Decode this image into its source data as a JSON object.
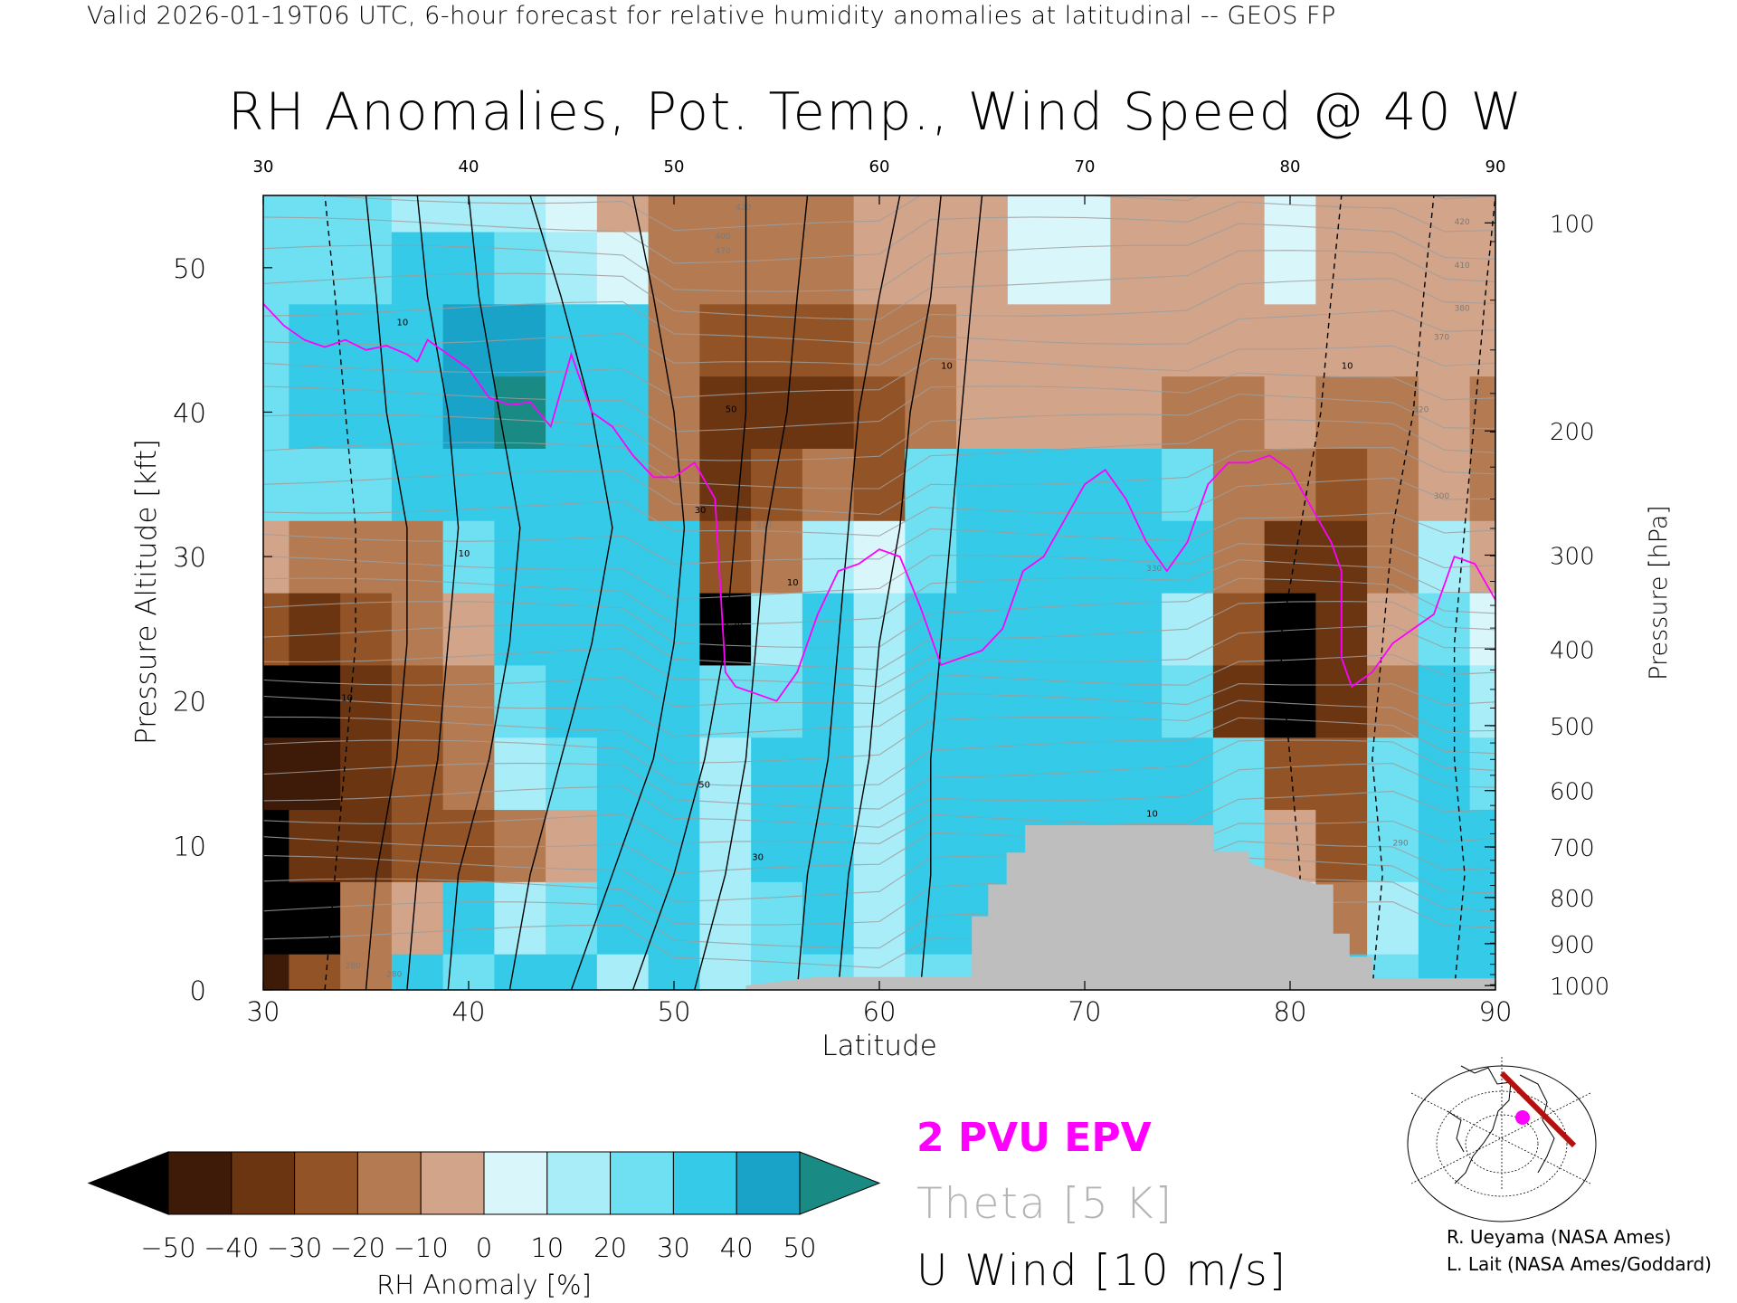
{
  "header": "Valid 2026-01-19T06 UTC, 6-hour forecast for relative humidity anomalies at latitudinal -- GEOS FP",
  "chart_data": {
    "type": "heatmap",
    "title": "RH Anomalies, Pot. Temp., Wind Speed @ 40 W",
    "xlabel": "Latitude",
    "ylabel_left": "Pressure Altitude [kft]",
    "ylabel_right": "Pressure [hPa]",
    "xlim": [
      30,
      90
    ],
    "ylim": [
      0,
      55
    ],
    "x_ticks": [
      "30",
      "40",
      "50",
      "60",
      "70",
      "80",
      "90"
    ],
    "x_ticks_top": [
      "30",
      "40",
      "50",
      "60",
      "70",
      "80",
      "90"
    ],
    "y_ticks": [
      "0",
      "10",
      "20",
      "30",
      "40",
      "50"
    ],
    "pressure_ticks": [
      {
        "label": "100",
        "kft": 53.1
      },
      {
        "label": "200",
        "kft": 38.7
      },
      {
        "label": "300",
        "kft": 30.1
      },
      {
        "label": "400",
        "kft": 23.6
      },
      {
        "label": "500",
        "kft": 18.3
      },
      {
        "label": "600",
        "kft": 13.8
      },
      {
        "label": "700",
        "kft": 9.9
      },
      {
        "label": "800",
        "kft": 6.4
      },
      {
        "label": "900",
        "kft": 3.2
      },
      {
        "label": "1000",
        "kft": 0.3
      }
    ],
    "colorbar": {
      "label": "RH Anomaly [%]",
      "ticks": [
        "−50",
        "−40",
        "−30",
        "−20",
        "−10",
        "0",
        "10",
        "20",
        "30",
        "40",
        "50"
      ],
      "under_color": "#000000",
      "over_color": "#1a8a85",
      "colors": [
        "#3e1a08",
        "#6b3512",
        "#925326",
        "#b47a52",
        "#d2a58b",
        "#eedcd0",
        "#d9f6fb",
        "#a8edf8",
        "#6fe0f2",
        "#35cbe8",
        "#1aa3c8"
      ]
    },
    "legend": [
      {
        "label": "2 PVU EPV",
        "color": "#ff00ff"
      },
      {
        "label": "Theta [5 K]",
        "color": "#b4b4b4"
      },
      {
        "label": "U Wind [10 m/s]",
        "color": "#000000"
      }
    ],
    "rh_anomaly_grid": {
      "lat": [
        30,
        32.5,
        35,
        37.5,
        40,
        42.5,
        45,
        47.5,
        50,
        52.5,
        55,
        57.5,
        60,
        62.5,
        65,
        67.5,
        70,
        72.5,
        75,
        77.5,
        80,
        82.5,
        85,
        87.5,
        90
      ],
      "kft": [
        0,
        5,
        10,
        15,
        20,
        25,
        30,
        35,
        40,
        45,
        50,
        55
      ],
      "values": [
        [
          -45,
          -25,
          -20,
          30,
          20,
          30,
          30,
          10,
          30,
          10,
          20,
          20,
          10,
          20,
          20,
          20,
          20,
          20,
          20,
          20,
          20,
          30,
          20,
          30,
          30
        ],
        [
          -55,
          -55,
          -20,
          -10,
          30,
          10,
          20,
          30,
          40,
          10,
          20,
          30,
          10,
          30,
          30,
          30,
          30,
          30,
          30,
          20,
          10,
          -20,
          10,
          30,
          30
        ],
        [
          -55,
          -40,
          -40,
          -30,
          -30,
          -20,
          -10,
          30,
          40,
          10,
          30,
          40,
          10,
          30,
          40,
          40,
          40,
          30,
          30,
          20,
          -10,
          -30,
          20,
          40,
          30
        ],
        [
          -50,
          -50,
          -35,
          -30,
          -20,
          10,
          20,
          30,
          40,
          10,
          30,
          40,
          10,
          30,
          40,
          40,
          40,
          40,
          30,
          20,
          -30,
          -30,
          20,
          40,
          20
        ],
        [
          -55,
          -55,
          -35,
          -25,
          -20,
          20,
          30,
          30,
          40,
          20,
          20,
          40,
          10,
          30,
          30,
          30,
          40,
          40,
          20,
          -40,
          -60,
          -40,
          -20,
          40,
          10
        ],
        [
          -30,
          -40,
          -25,
          -15,
          -10,
          30,
          40,
          40,
          40,
          -60,
          10,
          30,
          10,
          30,
          30,
          30,
          40,
          40,
          10,
          -30,
          -60,
          -40,
          -10,
          20,
          0
        ],
        [
          -10,
          -15,
          -20,
          -20,
          20,
          40,
          40,
          40,
          40,
          -30,
          -20,
          10,
          0,
          20,
          30,
          40,
          40,
          40,
          30,
          -20,
          -40,
          -40,
          -20,
          10,
          -10
        ],
        [
          20,
          20,
          20,
          30,
          40,
          40,
          40,
          40,
          -20,
          -40,
          -30,
          -20,
          -30,
          20,
          30,
          40,
          40,
          30,
          20,
          -20,
          -20,
          -30,
          -20,
          -10,
          -20
        ],
        [
          20,
          30,
          30,
          40,
          50,
          60,
          40,
          30,
          -20,
          -40,
          -40,
          -40,
          -30,
          -20,
          -10,
          -10,
          -10,
          -10,
          -20,
          -20,
          -10,
          -20,
          -20,
          -10,
          -20
        ],
        [
          20,
          30,
          30,
          40,
          50,
          50,
          40,
          30,
          -20,
          -30,
          -30,
          -30,
          -20,
          -20,
          -10,
          -10,
          -10,
          -10,
          -10,
          -10,
          -10,
          -10,
          -10,
          -10,
          -10
        ],
        [
          20,
          20,
          20,
          30,
          30,
          20,
          10,
          0,
          -20,
          -20,
          -20,
          -20,
          -10,
          -10,
          -10,
          0,
          0,
          -10,
          -10,
          -10,
          0,
          -10,
          -10,
          -10,
          -10
        ],
        [
          20,
          20,
          20,
          10,
          10,
          10,
          0,
          -10,
          -20,
          -20,
          -20,
          -20,
          -10,
          -10,
          -10,
          0,
          0,
          -10,
          -10,
          -10,
          0,
          -10,
          -10,
          -10,
          -10
        ]
      ]
    },
    "terrain_kft": [
      [
        53.5,
        0.3
      ],
      [
        57,
        0.9
      ],
      [
        64.5,
        0.9
      ],
      [
        64.5,
        5.1
      ],
      [
        65.3,
        5.1
      ],
      [
        65.3,
        7.3
      ],
      [
        66.2,
        7.3
      ],
      [
        66.2,
        9.5
      ],
      [
        67.1,
        9.5
      ],
      [
        67.1,
        11.4
      ],
      [
        76.3,
        11.4
      ],
      [
        76.3,
        9.6
      ],
      [
        78,
        9.6
      ],
      [
        78,
        8.8
      ],
      [
        81.3,
        7.3
      ],
      [
        82.1,
        7.3
      ],
      [
        82.1,
        3.9
      ],
      [
        82.9,
        3.9
      ],
      [
        82.9,
        2.3
      ],
      [
        84,
        2.3
      ],
      [
        84,
        0.8
      ],
      [
        90,
        0.8
      ],
      [
        90,
        0
      ]
    ],
    "epv_2pvu_line": [
      [
        30,
        47.5
      ],
      [
        31,
        46
      ],
      [
        32,
        45
      ],
      [
        33,
        44.5
      ],
      [
        34,
        45
      ],
      [
        35,
        44.3
      ],
      [
        36,
        44.6
      ],
      [
        37,
        44
      ],
      [
        37.5,
        43.5
      ],
      [
        38,
        45
      ],
      [
        39,
        44
      ],
      [
        40,
        43
      ],
      [
        41,
        41
      ],
      [
        42,
        40.5
      ],
      [
        43,
        40.7
      ],
      [
        44,
        39
      ],
      [
        45,
        44
      ],
      [
        46,
        40
      ],
      [
        47,
        39
      ],
      [
        48,
        37
      ],
      [
        49,
        35.5
      ],
      [
        50,
        35.5
      ],
      [
        51,
        36.5
      ],
      [
        52,
        34
      ],
      [
        52.5,
        22
      ],
      [
        53,
        21
      ],
      [
        54,
        20.5
      ],
      [
        55,
        20
      ],
      [
        56,
        22
      ],
      [
        57,
        26
      ],
      [
        58,
        29
      ],
      [
        59,
        29.5
      ],
      [
        60,
        30.5
      ],
      [
        61,
        30
      ],
      [
        62,
        26.5
      ],
      [
        63,
        22.5
      ],
      [
        64,
        23
      ],
      [
        65,
        23.5
      ],
      [
        66,
        25
      ],
      [
        67,
        29
      ],
      [
        68,
        30
      ],
      [
        69,
        32.5
      ],
      [
        70,
        35
      ],
      [
        71,
        36
      ],
      [
        72,
        34
      ],
      [
        73,
        31
      ],
      [
        74,
        29
      ],
      [
        75,
        31
      ],
      [
        76,
        35
      ],
      [
        77,
        36.5
      ],
      [
        78,
        36.5
      ],
      [
        79,
        37
      ],
      [
        80,
        36
      ],
      [
        81,
        33.5
      ],
      [
        82,
        31
      ],
      [
        82.5,
        29
      ],
      [
        82.5,
        23
      ],
      [
        83,
        21
      ],
      [
        84,
        22
      ],
      [
        85,
        24
      ],
      [
        86,
        25
      ],
      [
        87,
        26
      ],
      [
        88,
        30
      ],
      [
        89,
        29.5
      ],
      [
        90,
        27
      ]
    ],
    "u_wind_contour_x_at_levels": {
      "kft": [
        0,
        8,
        16,
        24,
        32,
        40,
        48,
        55
      ],
      "lines": [
        [
          33,
          33.5,
          34,
          34.5,
          34.5,
          34,
          33.5,
          33
        ],
        [
          35,
          35.5,
          36.5,
          37,
          37,
          36,
          35.5,
          35
        ],
        [
          37,
          37.5,
          38.5,
          39,
          39.5,
          39,
          38,
          37.5
        ],
        [
          39,
          39.5,
          41,
          42,
          42.5,
          41.5,
          40.5,
          40
        ],
        [
          42,
          43,
          44.5,
          46,
          47,
          46,
          44.5,
          43
        ],
        [
          45,
          47,
          49,
          50,
          50.5,
          50,
          49,
          48
        ],
        [
          48,
          50,
          51.5,
          52.5,
          53,
          53.5,
          53.5,
          53.5
        ],
        [
          51,
          52.5,
          53.5,
          54,
          54.5,
          55.5,
          56,
          56.5
        ],
        [
          56,
          56.5,
          57.5,
          58,
          58.5,
          59,
          60,
          61
        ],
        [
          58,
          58.5,
          59.5,
          60,
          61,
          61.5,
          62.5,
          63
        ],
        [
          62,
          62.5,
          62.5,
          63,
          63.5,
          64,
          64.5,
          65
        ],
        [
          80,
          80.5,
          80,
          79.5,
          80.5,
          81.5,
          82,
          82.5
        ],
        [
          84,
          84.5,
          84,
          84.5,
          85,
          86,
          86.5,
          87
        ],
        [
          88,
          88.5,
          88,
          88,
          88.5,
          89,
          89.5,
          90
        ]
      ]
    },
    "u_wind_contour_labels": [
      "10",
      "10",
      "10",
      "30",
      "50",
      "70",
      "50",
      "30",
      "10",
      "10",
      "10",
      "10"
    ],
    "theta_label_samples": [
      "280",
      "280",
      "330",
      "330",
      "370",
      "380",
      "400",
      "420",
      "470",
      "410",
      "420",
      "320",
      "300",
      "290"
    ]
  },
  "credits": {
    "line1": "R. Ueyama (NASA Ames)",
    "line2": "L. Lait (NASA Ames/Goddard)"
  }
}
